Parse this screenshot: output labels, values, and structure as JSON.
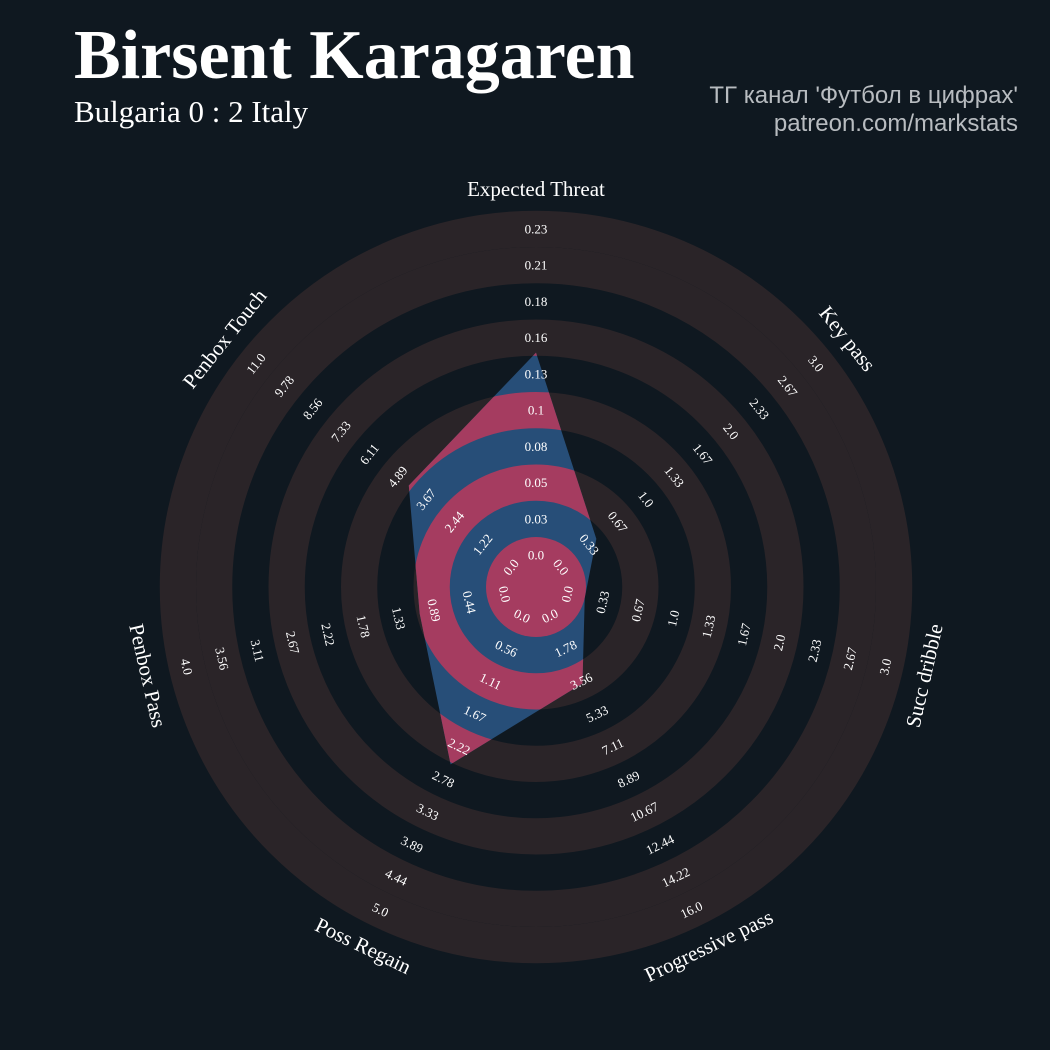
{
  "header": {
    "title": "Birsent Karagaren",
    "subtitle": "Bulgaria 0 : 2 Italy",
    "credit_line1": "ТГ канал 'Футбол в цифрах'",
    "credit_line2": "patreon.com/markstats"
  },
  "colors": {
    "background": "#0f1820",
    "ring": "#2a2428",
    "fill_blue": "#274e78",
    "fill_pink": "#a53c60",
    "text": "#ffffff",
    "credit": "#b8bcc0"
  },
  "chart_data": {
    "type": "radar",
    "params": [
      "Expected Threat",
      "Key pass",
      "Succ dribble",
      "Progressive pass",
      "Poss Regain",
      "Penbox Pass",
      "Penbox Touch"
    ],
    "ranges": [
      [
        0.0,
        0.23
      ],
      [
        0.0,
        3.0
      ],
      [
        0.0,
        3.0
      ],
      [
        0.0,
        16.0
      ],
      [
        0.0,
        5.0
      ],
      [
        0.0,
        4.0
      ],
      [
        0.0,
        11.0
      ]
    ],
    "ticks": [
      [
        "0.0",
        "0.03",
        "0.05",
        "0.08",
        "0.1",
        "0.13",
        "0.16",
        "0.18",
        "0.21",
        "0.23"
      ],
      [
        "0.0",
        "0.33",
        "0.67",
        "1.0",
        "1.33",
        "1.67",
        "2.0",
        "2.33",
        "2.67",
        "3.0"
      ],
      [
        "0.0",
        "0.33",
        "0.67",
        "1.0",
        "1.33",
        "1.67",
        "2.0",
        "2.33",
        "2.67",
        "3.0"
      ],
      [
        "0.0",
        "1.78",
        "3.56",
        "5.33",
        "7.11",
        "8.89",
        "10.67",
        "12.44",
        "14.22",
        "16.0"
      ],
      [
        "0.0",
        "0.56",
        "1.11",
        "1.67",
        "2.22",
        "2.78",
        "3.33",
        "3.89",
        "4.44",
        "5.0"
      ],
      [
        "0.0",
        "0.44",
        "0.89",
        "1.33",
        "1.78",
        "2.22",
        "2.67",
        "3.11",
        "3.56",
        "4.0"
      ],
      [
        "0.0",
        "1.22",
        "2.44",
        "3.67",
        "4.89",
        "6.11",
        "7.33",
        "8.56",
        "9.78",
        "11.0"
      ]
    ],
    "values": [
      0.13,
      0.25,
      0.0,
      2.8,
      2.25,
      0.85,
      3.8
    ],
    "grid": true,
    "legend": "none"
  }
}
